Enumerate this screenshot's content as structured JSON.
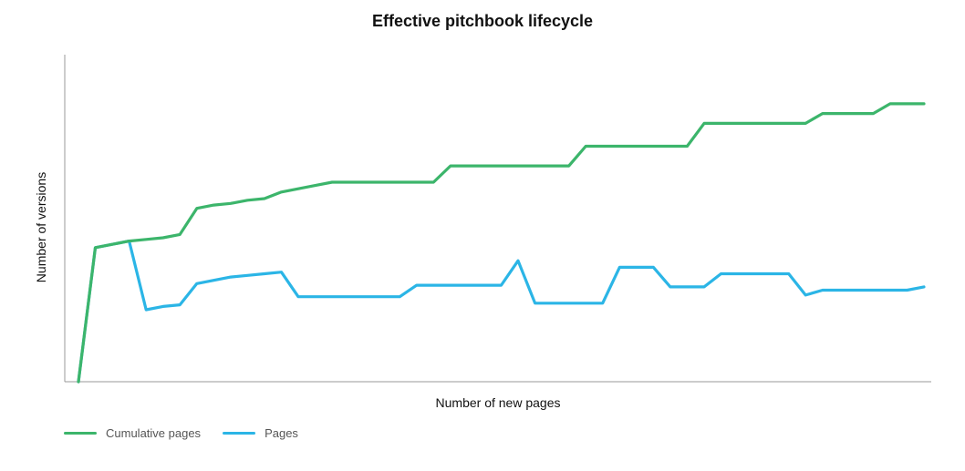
{
  "chart_data": {
    "type": "line",
    "title": "Effective pitchbook lifecycle",
    "xlabel": "Number of new pages",
    "ylabel": "Number of versions",
    "grid": false,
    "legend_position": "bottom-left",
    "x": [
      0,
      1,
      2,
      3,
      4,
      5,
      6,
      7,
      8,
      9,
      10,
      11,
      12,
      13,
      14,
      15,
      16,
      17,
      18,
      19,
      20,
      21,
      22,
      23,
      24,
      25,
      26,
      27,
      28,
      29,
      30,
      31,
      32,
      33,
      34,
      35,
      36,
      37,
      38,
      39,
      40,
      41,
      42,
      43,
      44,
      45,
      46,
      47,
      48,
      49,
      50
    ],
    "series": [
      {
        "name": "Cumulative pages",
        "color": "#3cb56b",
        "values": [
          0,
          41,
          42,
          43,
          43.5,
          44,
          45,
          53,
          54,
          54.5,
          55.5,
          56,
          58,
          59,
          60,
          61,
          61,
          61,
          61,
          61,
          61,
          61,
          66,
          66,
          66,
          66,
          66,
          66,
          66,
          66,
          72,
          72,
          72,
          72,
          72,
          72,
          72,
          79,
          79,
          79,
          79,
          79,
          79,
          79,
          82,
          82,
          82,
          82,
          85,
          85,
          85
        ]
      },
      {
        "name": "Pages",
        "color": "#2bb5e6",
        "values": [
          0,
          41,
          42,
          43,
          22,
          23,
          23.5,
          30,
          31,
          32,
          32.5,
          33,
          33.5,
          26,
          26,
          26,
          26,
          26,
          26,
          26,
          29.5,
          29.5,
          29.5,
          29.5,
          29.5,
          29.5,
          37,
          24,
          24,
          24,
          24,
          24,
          35,
          35,
          35,
          29,
          29,
          29,
          33,
          33,
          33,
          33,
          33,
          26.5,
          28,
          28,
          28,
          28,
          28,
          28,
          29
        ]
      }
    ]
  }
}
